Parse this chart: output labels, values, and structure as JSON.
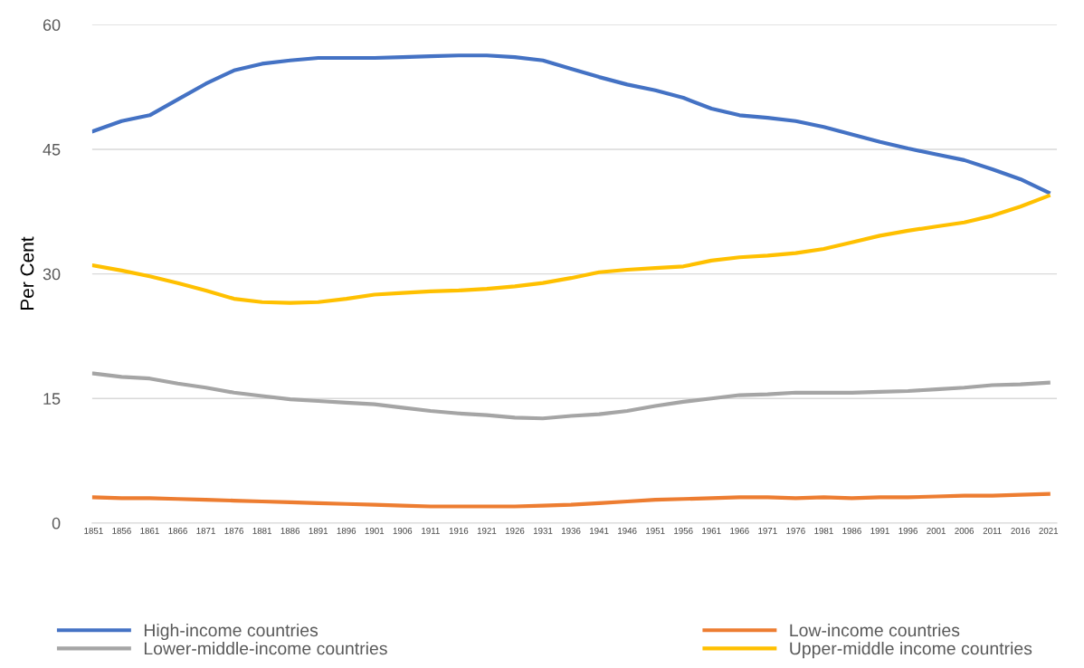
{
  "chart_data": {
    "type": "line",
    "ylabel": "Per Cent",
    "categories": [
      "1851",
      "1856",
      "1861",
      "1866",
      "1871",
      "1876",
      "1881",
      "1886",
      "1891",
      "1896",
      "1901",
      "1906",
      "1911",
      "1916",
      "1921",
      "1926",
      "1931",
      "1936",
      "1941",
      "1946",
      "1951",
      "1956",
      "1961",
      "1966",
      "1971",
      "1976",
      "1981",
      "1986",
      "1991",
      "1996",
      "2001",
      "2006",
      "2011",
      "2016",
      "2021"
    ],
    "series": [
      {
        "name": "High-income countries",
        "color": "#4472c4",
        "values": [
          47.2,
          48.4,
          49.1,
          51.0,
          52.9,
          54.5,
          55.3,
          55.7,
          56.0,
          56.0,
          56.0,
          56.1,
          56.2,
          56.3,
          56.3,
          56.1,
          55.7,
          54.7,
          53.7,
          52.8,
          52.1,
          51.2,
          49.9,
          49.1,
          48.8,
          48.4,
          47.7,
          46.8,
          45.9,
          45.1,
          44.4,
          43.7,
          42.6,
          41.4,
          39.8
        ]
      },
      {
        "name": "Low-income countries",
        "color": "#ed7d31",
        "values": [
          3.1,
          3.0,
          3.0,
          2.9,
          2.8,
          2.7,
          2.6,
          2.5,
          2.4,
          2.3,
          2.2,
          2.1,
          2.0,
          2.0,
          2.0,
          2.0,
          2.1,
          2.2,
          2.4,
          2.6,
          2.8,
          2.9,
          3.0,
          3.1,
          3.1,
          3.0,
          3.1,
          3.0,
          3.1,
          3.1,
          3.2,
          3.3,
          3.3,
          3.4,
          3.5
        ]
      },
      {
        "name": "Lower-middle-income countries",
        "color": "#a5a5a5",
        "values": [
          18.0,
          17.6,
          17.4,
          16.8,
          16.3,
          15.7,
          15.3,
          14.9,
          14.7,
          14.5,
          14.3,
          13.9,
          13.5,
          13.2,
          13.0,
          12.7,
          12.6,
          12.9,
          13.1,
          13.5,
          14.1,
          14.6,
          15.0,
          15.4,
          15.5,
          15.7,
          15.7,
          15.7,
          15.8,
          15.9,
          16.1,
          16.3,
          16.6,
          16.7,
          16.9
        ]
      },
      {
        "name": "Upper-middle income countries",
        "color": "#ffc000",
        "values": [
          31.0,
          30.4,
          29.7,
          28.9,
          28.0,
          27.0,
          26.6,
          26.5,
          26.6,
          27.0,
          27.5,
          27.7,
          27.9,
          28.0,
          28.2,
          28.5,
          28.9,
          29.5,
          30.2,
          30.5,
          30.7,
          30.9,
          31.6,
          32.0,
          32.2,
          32.5,
          33.0,
          33.8,
          34.6,
          35.2,
          35.7,
          36.2,
          37.0,
          38.1,
          39.4
        ]
      }
    ],
    "ylim": [
      0,
      60
    ],
    "yticks": [
      0,
      15,
      30,
      45,
      60
    ],
    "grid": "y",
    "legend": "bottom",
    "marker": "none",
    "line_style": "solid"
  }
}
